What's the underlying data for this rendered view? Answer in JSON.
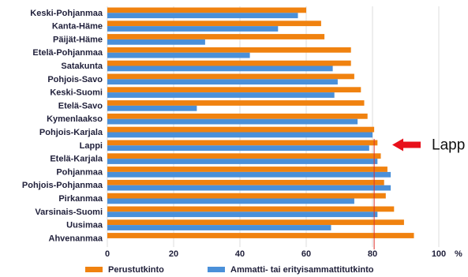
{
  "chart_data": {
    "type": "bar",
    "orientation": "horizontal",
    "categories": [
      "Keski-Pohjanmaa",
      "Kanta-Häme",
      "Päijät-Häme",
      "Etelä-Pohjanmaa",
      "Satakunta",
      "Pohjois-Savo",
      "Keski-Suomi",
      "Etelä-Savo",
      "Kymenlaakso",
      "Pohjois-Karjala",
      "Lappi",
      "Etelä-Karjala",
      "Pohjanmaa",
      "Pohjois-Pohjanmaa",
      "Pirkanmaa",
      "Varsinais-Suomi",
      "Uusimaa",
      "Ahvenanmaa"
    ],
    "series": [
      {
        "name": "Perustutkinto",
        "color": "#f0820f",
        "values": [
          60,
          64.5,
          65.5,
          73.5,
          73.5,
          74.5,
          76.5,
          77.5,
          78.5,
          80.5,
          81.5,
          82.5,
          84.5,
          83.5,
          84,
          86.5,
          89.5,
          92.5
        ]
      },
      {
        "name": "Ammatti- tai erityisammattitutkinto",
        "color": "#4a90d9",
        "values": [
          57.5,
          51.5,
          29.5,
          43,
          68,
          69.5,
          68.5,
          27,
          75.5,
          80,
          79,
          81.5,
          85.5,
          85.5,
          74.5,
          81.5,
          67.5,
          null
        ]
      }
    ],
    "xlim": [
      0,
      100
    ],
    "xticks": [
      "0",
      "20",
      "40",
      "60",
      "80",
      "100"
    ],
    "x_unit_label": "%",
    "reference_line": 80.5,
    "annotation": {
      "text": "Lapp"
    },
    "legend_position": "bottom"
  }
}
